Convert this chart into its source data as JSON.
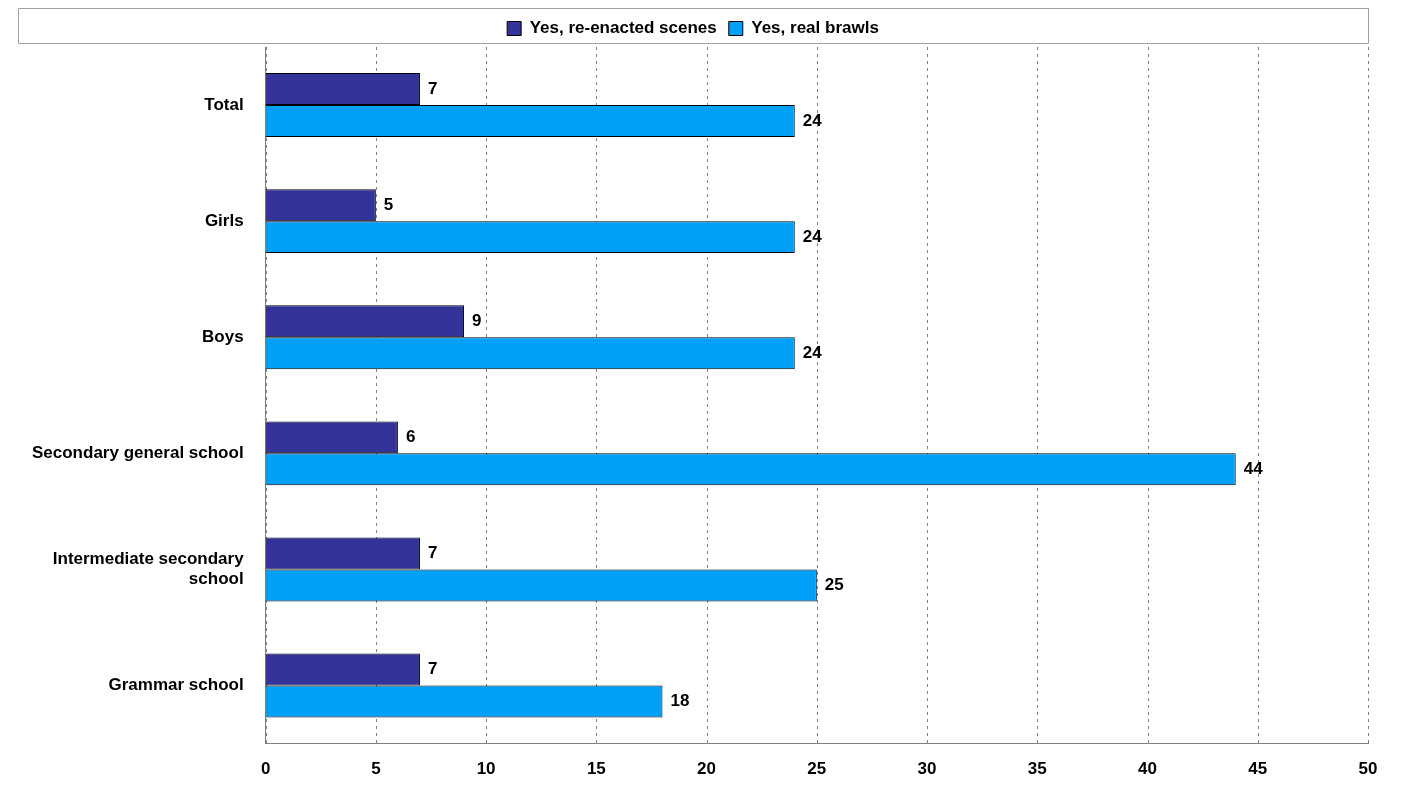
{
  "chart_data": {
    "type": "bar",
    "orientation": "horizontal",
    "categories": [
      "Total",
      "Girls",
      "Boys",
      "Secondary general school",
      "Intermediate secondary school",
      "Grammar school"
    ],
    "series": [
      {
        "name": "Yes, re-enacted scenes",
        "color": "#333399",
        "values": [
          7,
          5,
          9,
          6,
          7,
          7
        ]
      },
      {
        "name": "Yes, real brawls",
        "color": "#00a0f8",
        "values": [
          24,
          24,
          24,
          44,
          25,
          18
        ]
      }
    ],
    "xlim": [
      0,
      50
    ],
    "xticks": [
      0,
      5,
      10,
      15,
      20,
      25,
      30,
      35,
      40,
      45,
      50
    ],
    "grid": "x",
    "legend": "top",
    "data_labels": true
  }
}
